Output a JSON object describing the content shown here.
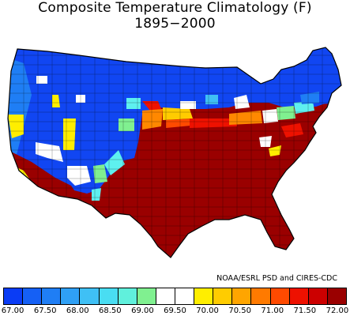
{
  "title": "Composite Temperature Climatology (F) 1895−2000",
  "credit": "NOAA/ESRL PSD and CIRES-CDC",
  "colorbar": {
    "colors": [
      "#0a3cf5",
      "#1560f5",
      "#1f7ef5",
      "#2fa0f5",
      "#3fc0f5",
      "#49ddf2",
      "#60f0dc",
      "#80f090",
      "#ffffff",
      "#ffffff",
      "#ffee00",
      "#ffcc00",
      "#ffa500",
      "#ff7a00",
      "#ff4a00",
      "#ee1100",
      "#cc0000",
      "#9a0000"
    ],
    "tick_labels": [
      "67.00",
      "67.50",
      "68.00",
      "68.50",
      "69.00",
      "69.50",
      "70.00",
      "70.50",
      "71.00",
      "71.50",
      "72.00"
    ]
  },
  "legend": {
    "cold": "#1146f2",
    "cold_mid": "#1f7ef5",
    "cool": "#3fc0f5",
    "cyan": "#5ef0ef",
    "green": "#80f090",
    "white": "#ffffff",
    "yellow": "#ffee00",
    "gold": "#ffcc00",
    "orange": "#ff8800",
    "red_orange": "#ff4a00",
    "red": "#ee1100",
    "hot": "#9a0000"
  }
}
